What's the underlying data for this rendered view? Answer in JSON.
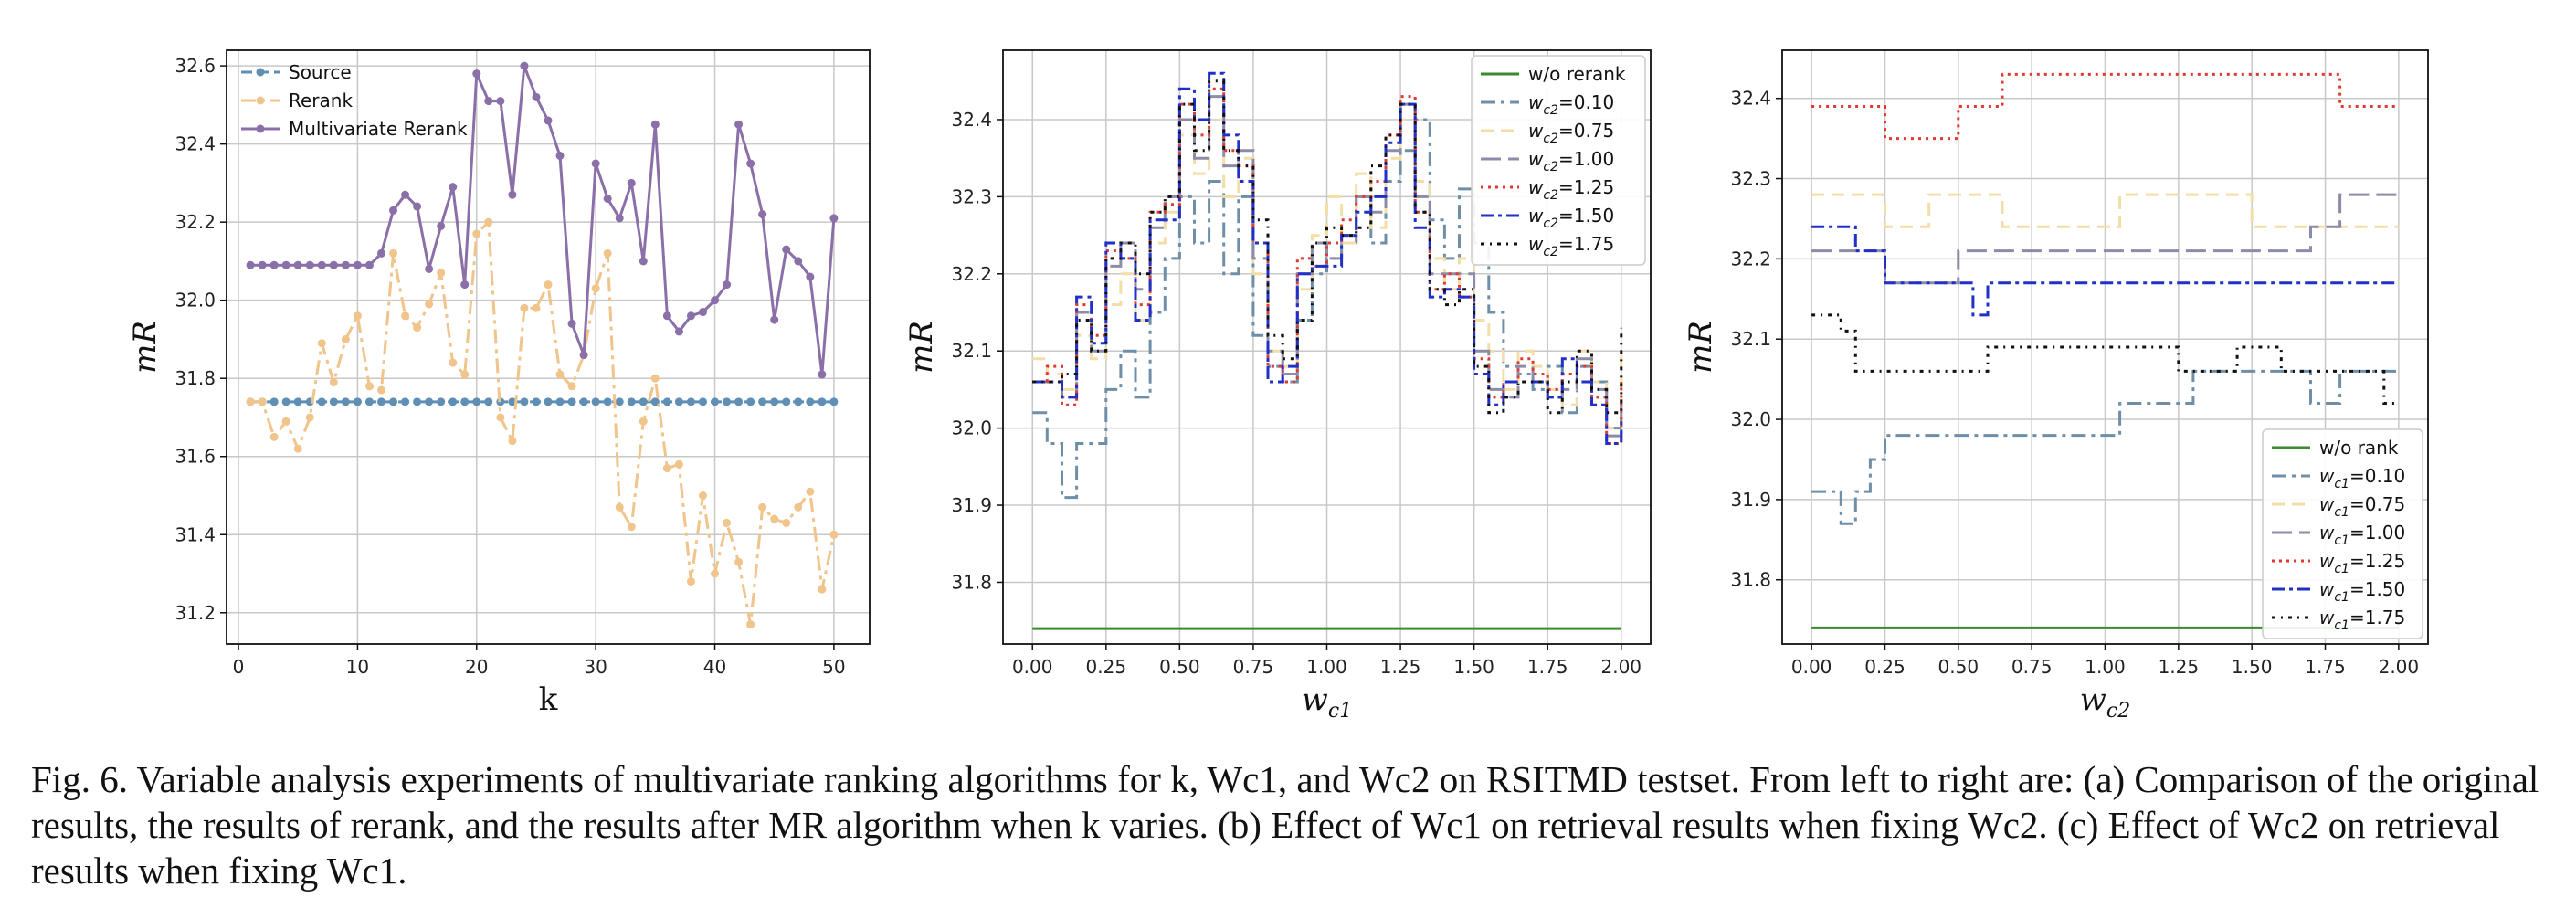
{
  "caption": {
    "fig_label": "Fig. 6.",
    "text": "Variable analysis experiments of multivariate ranking algorithms for k, Wc1, and Wc2 on RSITMD testset. From left to right are: (a) Comparison of the original results, the results of rerank, and the results after MR algorithm when k varies. (b) Effect of Wc1 on retrieval results when fixing Wc2. (c) Effect of Wc2 on retrieval results when fixing Wc1."
  },
  "colors": {
    "source": "#5f8fb4",
    "rerank": "#f0c48a",
    "multivariate": "#8a6fa8",
    "green": "#3a8a2e",
    "s010": "#6f8fa8",
    "s075": "#f4dea8",
    "s100": "#8c8ca8",
    "s125": "#e03a30",
    "s150": "#2030c8",
    "s175": "#111111"
  },
  "chart_data": [
    {
      "type": "line",
      "xlabel": "k",
      "ylabel": "mR",
      "xlim": [
        -1,
        53
      ],
      "ylim": [
        31.12,
        32.64
      ],
      "xticks": [
        0,
        10,
        20,
        30,
        40,
        50
      ],
      "yticks": [
        31.2,
        31.4,
        31.6,
        31.8,
        32.0,
        32.2,
        32.4,
        32.6
      ],
      "grid": true,
      "legend_position": "top-left",
      "x": [
        1,
        2,
        3,
        4,
        5,
        6,
        7,
        8,
        9,
        10,
        11,
        12,
        13,
        14,
        15,
        16,
        17,
        18,
        19,
        20,
        21,
        22,
        23,
        24,
        25,
        26,
        27,
        28,
        29,
        30,
        31,
        32,
        33,
        34,
        35,
        36,
        37,
        38,
        39,
        40,
        41,
        42,
        43,
        44,
        45,
        46,
        47,
        48,
        49,
        50
      ],
      "series": [
        {
          "name": "Source",
          "values": [
            31.74,
            31.74,
            31.74,
            31.74,
            31.74,
            31.74,
            31.74,
            31.74,
            31.74,
            31.74,
            31.74,
            31.74,
            31.74,
            31.74,
            31.74,
            31.74,
            31.74,
            31.74,
            31.74,
            31.74,
            31.74,
            31.74,
            31.74,
            31.74,
            31.74,
            31.74,
            31.74,
            31.74,
            31.74,
            31.74,
            31.74,
            31.74,
            31.74,
            31.74,
            31.74,
            31.74,
            31.74,
            31.74,
            31.74,
            31.74,
            31.74,
            31.74,
            31.74,
            31.74,
            31.74,
            31.74,
            31.74,
            31.74,
            31.74,
            31.74
          ]
        },
        {
          "name": "Rerank",
          "values": [
            31.74,
            31.74,
            31.65,
            31.69,
            31.62,
            31.7,
            31.89,
            31.79,
            31.9,
            31.96,
            31.78,
            31.77,
            32.12,
            31.96,
            31.93,
            31.99,
            32.07,
            31.84,
            31.81,
            32.17,
            32.2,
            31.7,
            31.64,
            31.98,
            31.98,
            32.04,
            31.81,
            31.78,
            31.86,
            32.03,
            32.12,
            31.47,
            31.42,
            31.69,
            31.8,
            31.57,
            31.58,
            31.28,
            31.5,
            31.3,
            31.43,
            31.33,
            31.17,
            31.47,
            31.44,
            31.43,
            31.47,
            31.51,
            31.26,
            31.4
          ]
        },
        {
          "name": "Multivariate Rerank",
          "values": [
            32.09,
            32.09,
            32.09,
            32.09,
            32.09,
            32.09,
            32.09,
            32.09,
            32.09,
            32.09,
            32.09,
            32.12,
            32.23,
            32.27,
            32.24,
            32.08,
            32.19,
            32.29,
            32.04,
            32.58,
            32.51,
            32.51,
            32.27,
            32.6,
            32.52,
            32.46,
            32.37,
            31.94,
            31.86,
            32.35,
            32.26,
            32.21,
            32.3,
            32.1,
            32.45,
            31.96,
            31.92,
            31.96,
            31.97,
            32.0,
            32.04,
            32.45,
            32.35,
            32.22,
            31.95,
            32.13,
            32.1,
            32.06,
            31.81,
            32.21
          ]
        }
      ]
    },
    {
      "type": "line",
      "xlabel": "wc1",
      "ylabel": "mR",
      "xlim": [
        -0.1,
        2.1
      ],
      "ylim": [
        31.72,
        32.49
      ],
      "xticks": [
        0.0,
        0.25,
        0.5,
        0.75,
        1.0,
        1.25,
        1.5,
        1.75,
        2.0
      ],
      "xtick_labels": [
        "0.00",
        "0.25",
        "0.50",
        "0.75",
        "1.00",
        "1.25",
        "1.50",
        "1.75",
        "2.00"
      ],
      "yticks": [
        31.8,
        31.9,
        32.0,
        32.1,
        32.2,
        32.3,
        32.4
      ],
      "grid": true,
      "legend_position": "top-right",
      "x": [
        0.0,
        0.05,
        0.1,
        0.15,
        0.2,
        0.25,
        0.3,
        0.35,
        0.4,
        0.45,
        0.5,
        0.55,
        0.6,
        0.65,
        0.7,
        0.75,
        0.8,
        0.85,
        0.9,
        0.95,
        1.0,
        1.05,
        1.1,
        1.15,
        1.2,
        1.25,
        1.3,
        1.35,
        1.4,
        1.45,
        1.5,
        1.55,
        1.6,
        1.65,
        1.7,
        1.75,
        1.8,
        1.85,
        1.9,
        1.95,
        2.0
      ],
      "series": [
        {
          "name": "w/o rerank",
          "values": [
            31.74,
            31.74,
            31.74,
            31.74,
            31.74,
            31.74,
            31.74,
            31.74,
            31.74,
            31.74,
            31.74,
            31.74,
            31.74,
            31.74,
            31.74,
            31.74,
            31.74,
            31.74,
            31.74,
            31.74,
            31.74,
            31.74,
            31.74,
            31.74,
            31.74,
            31.74,
            31.74,
            31.74,
            31.74,
            31.74,
            31.74,
            31.74,
            31.74,
            31.74,
            31.74,
            31.74,
            31.74,
            31.74,
            31.74,
            31.74,
            31.74
          ]
        },
        {
          "name": "wc2=0.10",
          "values": [
            32.02,
            31.98,
            31.91,
            31.98,
            31.98,
            32.05,
            32.1,
            32.04,
            32.15,
            32.22,
            32.3,
            32.24,
            32.32,
            32.2,
            32.3,
            32.12,
            32.08,
            32.06,
            32.14,
            32.2,
            32.22,
            32.24,
            32.3,
            32.24,
            32.32,
            32.36,
            32.4,
            32.27,
            32.22,
            32.31,
            32.24,
            32.15,
            32.08,
            32.07,
            32.05,
            32.08,
            32.02,
            32.08,
            32.06,
            32.0,
            32.02
          ]
        },
        {
          "name": "wc2=0.75",
          "values": [
            32.09,
            32.07,
            32.05,
            32.12,
            32.09,
            32.16,
            32.2,
            32.14,
            32.24,
            32.28,
            32.38,
            32.33,
            32.4,
            32.3,
            32.35,
            32.2,
            32.1,
            32.08,
            32.18,
            32.25,
            32.3,
            32.24,
            32.33,
            32.26,
            32.35,
            32.4,
            32.32,
            32.22,
            32.18,
            32.22,
            32.14,
            32.1,
            32.05,
            32.1,
            32.08,
            32.05,
            32.03,
            32.1,
            32.06,
            32.0,
            32.1
          ]
        },
        {
          "name": "wc2=1.00",
          "values": [
            32.06,
            32.06,
            32.04,
            32.15,
            32.1,
            32.21,
            32.24,
            32.18,
            32.26,
            32.3,
            32.4,
            32.35,
            32.43,
            32.34,
            32.36,
            32.22,
            32.1,
            32.07,
            32.2,
            32.24,
            32.22,
            32.25,
            32.3,
            32.28,
            32.36,
            32.42,
            32.3,
            32.2,
            32.2,
            32.2,
            32.1,
            32.05,
            32.04,
            32.08,
            32.06,
            32.04,
            32.05,
            32.09,
            32.05,
            31.99,
            32.04
          ]
        },
        {
          "name": "wc2=1.25",
          "values": [
            32.06,
            32.08,
            32.03,
            32.16,
            32.12,
            32.23,
            32.22,
            32.16,
            32.28,
            32.29,
            32.42,
            32.38,
            32.44,
            32.36,
            32.34,
            32.24,
            32.08,
            32.06,
            32.22,
            32.21,
            32.24,
            32.27,
            32.3,
            32.32,
            32.38,
            32.43,
            32.28,
            32.18,
            32.2,
            32.17,
            32.09,
            32.04,
            32.06,
            32.09,
            32.07,
            32.05,
            32.07,
            32.08,
            32.04,
            31.98,
            32.06
          ]
        },
        {
          "name": "wc2=1.50",
          "values": [
            32.06,
            32.06,
            32.04,
            32.17,
            32.11,
            32.24,
            32.22,
            32.14,
            32.27,
            32.27,
            32.44,
            32.4,
            32.46,
            32.38,
            32.32,
            32.24,
            32.06,
            32.08,
            32.2,
            32.21,
            32.21,
            32.25,
            32.28,
            32.3,
            32.37,
            32.42,
            32.26,
            32.17,
            32.18,
            32.17,
            32.07,
            32.03,
            32.06,
            32.06,
            32.06,
            32.04,
            32.09,
            32.06,
            32.03,
            31.98,
            32.01
          ]
        },
        {
          "name": "wc2=1.75",
          "values": [
            32.06,
            32.06,
            32.07,
            32.14,
            32.1,
            32.22,
            32.24,
            32.2,
            32.28,
            32.3,
            32.42,
            32.36,
            32.45,
            32.36,
            32.34,
            32.27,
            32.12,
            32.09,
            32.14,
            32.24,
            32.26,
            32.25,
            32.26,
            32.34,
            32.38,
            32.42,
            32.28,
            32.18,
            32.16,
            32.18,
            32.08,
            32.02,
            32.04,
            32.06,
            32.06,
            32.02,
            32.06,
            32.1,
            32.05,
            32.02,
            32.13
          ]
        }
      ]
    },
    {
      "type": "line",
      "xlabel": "wc2",
      "ylabel": "mR",
      "xlim": [
        -0.1,
        2.1
      ],
      "ylim": [
        31.72,
        32.46
      ],
      "xticks": [
        0.0,
        0.25,
        0.5,
        0.75,
        1.0,
        1.25,
        1.5,
        1.75,
        2.0
      ],
      "xtick_labels": [
        "0.00",
        "0.25",
        "0.50",
        "0.75",
        "1.00",
        "1.25",
        "1.50",
        "1.75",
        "2.00"
      ],
      "yticks": [
        31.8,
        31.9,
        32.0,
        32.1,
        32.2,
        32.3,
        32.4
      ],
      "grid": true,
      "legend_position": "bottom-right",
      "x": [
        0.0,
        0.05,
        0.1,
        0.15,
        0.2,
        0.25,
        0.3,
        0.35,
        0.4,
        0.45,
        0.5,
        0.55,
        0.6,
        0.65,
        0.7,
        0.75,
        0.8,
        0.85,
        0.9,
        0.95,
        1.0,
        1.05,
        1.1,
        1.15,
        1.2,
        1.25,
        1.3,
        1.35,
        1.4,
        1.45,
        1.5,
        1.55,
        1.6,
        1.65,
        1.7,
        1.75,
        1.8,
        1.85,
        1.9,
        1.95,
        2.0
      ],
      "series": [
        {
          "name": "w/o rank",
          "values": [
            31.74,
            31.74,
            31.74,
            31.74,
            31.74,
            31.74,
            31.74,
            31.74,
            31.74,
            31.74,
            31.74,
            31.74,
            31.74,
            31.74,
            31.74,
            31.74,
            31.74,
            31.74,
            31.74,
            31.74,
            31.74,
            31.74,
            31.74,
            31.74,
            31.74,
            31.74,
            31.74,
            31.74,
            31.74,
            31.74,
            31.74,
            31.74,
            31.74,
            31.74,
            31.74,
            31.74,
            31.74,
            31.74,
            31.74,
            31.74,
            31.74
          ]
        },
        {
          "name": "wc1=0.10",
          "values": [
            31.91,
            31.91,
            31.87,
            31.91,
            31.95,
            31.98,
            31.98,
            31.98,
            31.98,
            31.98,
            31.98,
            31.98,
            31.98,
            31.98,
            31.98,
            31.98,
            31.98,
            31.98,
            31.98,
            31.98,
            31.98,
            32.02,
            32.02,
            32.02,
            32.02,
            32.02,
            32.06,
            32.06,
            32.06,
            32.06,
            32.06,
            32.06,
            32.06,
            32.06,
            32.02,
            32.02,
            32.06,
            32.06,
            32.06,
            32.06,
            32.06
          ]
        },
        {
          "name": "wc1=0.75",
          "values": [
            32.28,
            32.28,
            32.28,
            32.28,
            32.28,
            32.24,
            32.24,
            32.24,
            32.28,
            32.28,
            32.28,
            32.28,
            32.28,
            32.24,
            32.24,
            32.24,
            32.24,
            32.24,
            32.24,
            32.24,
            32.24,
            32.28,
            32.28,
            32.28,
            32.28,
            32.28,
            32.28,
            32.28,
            32.28,
            32.28,
            32.24,
            32.24,
            32.24,
            32.24,
            32.24,
            32.24,
            32.24,
            32.24,
            32.24,
            32.24,
            32.24
          ]
        },
        {
          "name": "wc1=1.00",
          "values": [
            32.21,
            32.21,
            32.21,
            32.21,
            32.21,
            32.17,
            32.17,
            32.17,
            32.17,
            32.17,
            32.21,
            32.21,
            32.21,
            32.21,
            32.21,
            32.21,
            32.21,
            32.21,
            32.21,
            32.21,
            32.21,
            32.21,
            32.21,
            32.21,
            32.21,
            32.21,
            32.21,
            32.21,
            32.21,
            32.21,
            32.21,
            32.21,
            32.21,
            32.21,
            32.24,
            32.24,
            32.28,
            32.28,
            32.28,
            32.28,
            32.28
          ]
        },
        {
          "name": "wc1=1.25",
          "values": [
            32.39,
            32.39,
            32.39,
            32.39,
            32.39,
            32.35,
            32.35,
            32.35,
            32.35,
            32.35,
            32.39,
            32.39,
            32.39,
            32.43,
            32.43,
            32.43,
            32.43,
            32.43,
            32.43,
            32.43,
            32.43,
            32.43,
            32.43,
            32.43,
            32.43,
            32.43,
            32.43,
            32.43,
            32.43,
            32.43,
            32.43,
            32.43,
            32.43,
            32.43,
            32.43,
            32.43,
            32.39,
            32.39,
            32.39,
            32.39,
            32.39
          ]
        },
        {
          "name": "wc1=1.50",
          "values": [
            32.24,
            32.24,
            32.24,
            32.21,
            32.21,
            32.17,
            32.17,
            32.17,
            32.17,
            32.17,
            32.17,
            32.13,
            32.17,
            32.17,
            32.17,
            32.17,
            32.17,
            32.17,
            32.17,
            32.17,
            32.17,
            32.17,
            32.17,
            32.17,
            32.17,
            32.17,
            32.17,
            32.17,
            32.17,
            32.17,
            32.17,
            32.17,
            32.17,
            32.17,
            32.17,
            32.17,
            32.17,
            32.17,
            32.17,
            32.17,
            32.17
          ]
        },
        {
          "name": "wc1=1.75",
          "values": [
            32.13,
            32.13,
            32.11,
            32.06,
            32.06,
            32.06,
            32.06,
            32.06,
            32.06,
            32.06,
            32.06,
            32.06,
            32.09,
            32.09,
            32.09,
            32.09,
            32.09,
            32.09,
            32.09,
            32.09,
            32.09,
            32.09,
            32.09,
            32.09,
            32.09,
            32.06,
            32.06,
            32.06,
            32.06,
            32.09,
            32.09,
            32.09,
            32.06,
            32.06,
            32.06,
            32.06,
            32.06,
            32.06,
            32.06,
            32.02,
            32.02
          ]
        }
      ]
    }
  ]
}
